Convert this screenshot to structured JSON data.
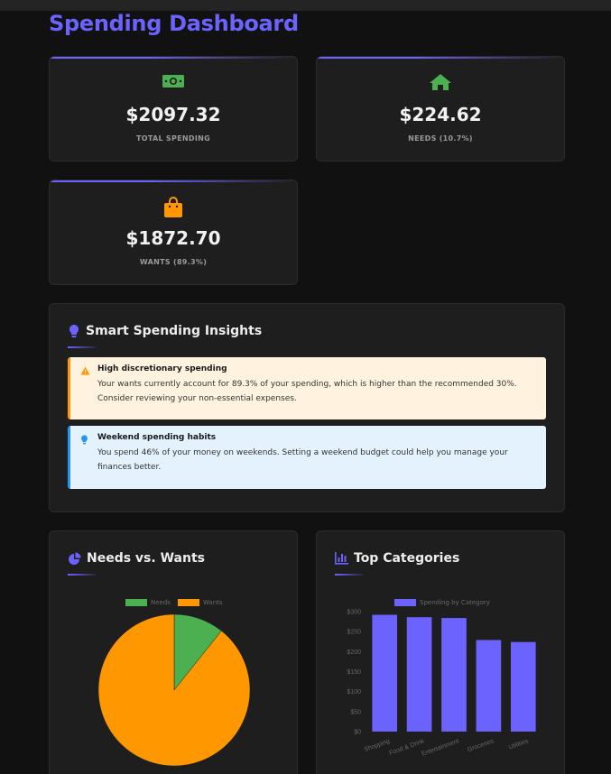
{
  "page": {
    "title": "Spending Dashboard"
  },
  "stats": [
    {
      "value": "$2097.32",
      "label": "TOTAL SPENDING",
      "icon": "money-icon",
      "color": "#4caf50"
    },
    {
      "value": "$224.62",
      "label": "NEEDS (10.7%)",
      "icon": "home-icon",
      "color": "#4caf50"
    },
    {
      "value": "$1872.70",
      "label": "WANTS (89.3%)",
      "icon": "shopping-bag-icon",
      "color": "#ff9800"
    }
  ],
  "insights": {
    "title": "Smart Spending Insights",
    "items": [
      {
        "title": "High discretionary spending",
        "text": "Your wants currently account for 89.3% of your spending, which is higher than the recommended 30%. Consider reviewing your non-essential expenses.",
        "icon": "warning-icon"
      },
      {
        "title": "Weekend spending habits",
        "text": "You spend 46% of your money on weekends. Setting a weekend budget could help you manage your finances better.",
        "icon": "lightbulb-icon"
      }
    ]
  },
  "needs_wants": {
    "title": "Needs vs. Wants",
    "legend": [
      "Needs",
      "Wants"
    ]
  },
  "top_categories": {
    "title": "Top Categories",
    "legend": "Spending by Category"
  },
  "colors": {
    "accent": "#6c63ff",
    "needs": "#4caf50",
    "wants": "#ff9800",
    "bar": "#6c63ff"
  },
  "chart_data": [
    {
      "type": "pie",
      "labels": [
        "Needs",
        "Wants"
      ],
      "values": [
        224.62,
        1872.7
      ],
      "colors": [
        "#4caf50",
        "#ff9800"
      ],
      "legend_position": "top"
    },
    {
      "type": "bar",
      "categories": [
        "Shopping",
        "Food & Drink",
        "Entertainment",
        "Groceries",
        "Utilities"
      ],
      "series": [
        {
          "name": "Spending by Category",
          "values": [
            292,
            286,
            284,
            229,
            224
          ]
        }
      ],
      "ylim": [
        0,
        300
      ],
      "yticks": [
        "$0",
        "$50",
        "$100",
        "$150",
        "$200",
        "$250",
        "$300"
      ],
      "grid": false,
      "legend_position": "top"
    }
  ]
}
